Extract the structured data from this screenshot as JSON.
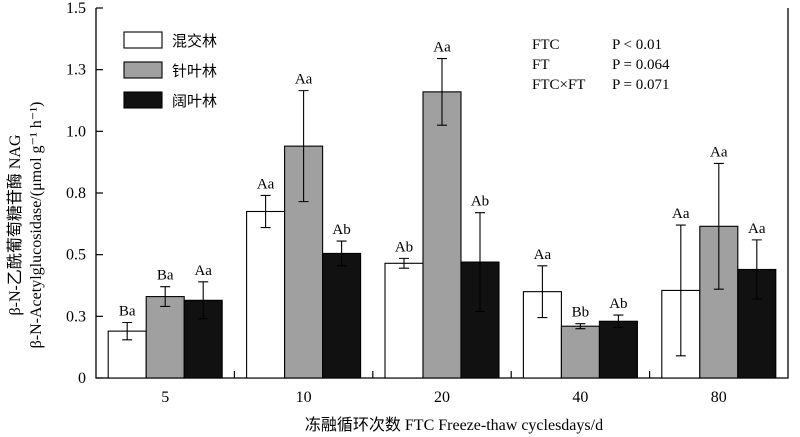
{
  "chart_data": {
    "type": "bar",
    "categories": [
      "5",
      "10",
      "20",
      "40",
      "80"
    ],
    "xlabel": "冻融循环次数 FTC Freeze-thaw cyclesdays/d",
    "ylabel_line1": "β-N-乙酰葡萄糖苷酶 NAG",
    "ylabel_line2": "β-N-Acetylglucosidase/(μmol g⁻¹ h⁻¹)",
    "ylim": [
      0,
      1.5
    ],
    "yticks": [
      {
        "value": 0,
        "label": "0"
      },
      {
        "value": 0.25,
        "label": "0.3"
      },
      {
        "value": 0.5,
        "label": "0.5"
      },
      {
        "value": 0.75,
        "label": "0.8"
      },
      {
        "value": 1.0,
        "label": "1.0"
      },
      {
        "value": 1.25,
        "label": "1.3"
      },
      {
        "value": 1.5,
        "label": "1.5"
      }
    ],
    "legend_position": "top-left",
    "series": [
      {
        "name": "混交林",
        "color": "#ffffff",
        "values": [
          0.19,
          0.675,
          0.465,
          0.35,
          0.355
        ],
        "errors": [
          0.035,
          0.065,
          0.02,
          0.105,
          0.265
        ],
        "labels": [
          "Ba",
          "Aa",
          "Ab",
          "Aa",
          "Aa"
        ]
      },
      {
        "name": "针叶林",
        "color": "#a0a0a0",
        "values": [
          0.33,
          0.94,
          1.16,
          0.21,
          0.615
        ],
        "errors": [
          0.04,
          0.225,
          0.135,
          0.01,
          0.255
        ],
        "labels": [
          "Ba",
          "Aa",
          "Aa",
          "Bb",
          "Aa"
        ]
      },
      {
        "name": "阔叶林",
        "color": "#111111",
        "values": [
          0.315,
          0.505,
          0.47,
          0.23,
          0.44
        ],
        "errors": [
          0.075,
          0.05,
          0.2,
          0.025,
          0.12
        ],
        "labels": [
          "Aa",
          "Ab",
          "Ab",
          "Ab",
          "Aa"
        ]
      }
    ],
    "stats": [
      {
        "term": "FTC",
        "p": "P < 0.01"
      },
      {
        "term": "FT",
        "p": "P = 0.064"
      },
      {
        "term": "FTC×FT",
        "p": "P = 0.071"
      }
    ]
  }
}
